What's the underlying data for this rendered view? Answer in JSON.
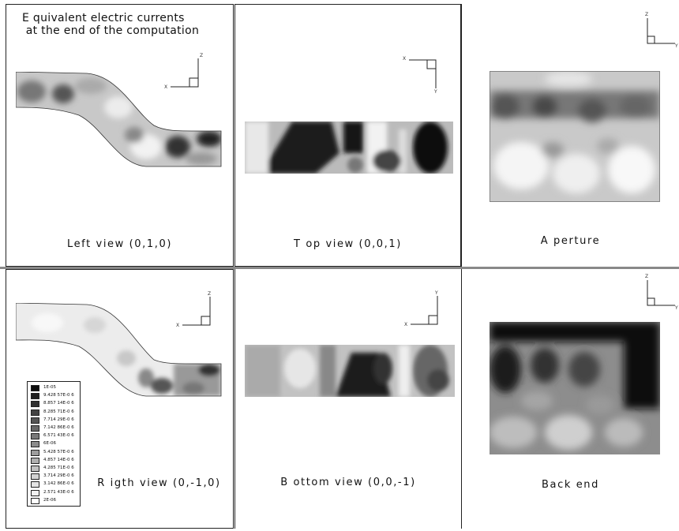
{
  "figure_title": "E quivalent electric currents\n at the end of the computation",
  "panels": {
    "left_view": {
      "caption": "Left view (0,1,0)",
      "axes": [
        "X",
        "Z"
      ]
    },
    "top_view": {
      "caption": "T op view (0,0,1)",
      "axes": [
        "X",
        "Y"
      ]
    },
    "aperture": {
      "caption": "A perture",
      "axes": [
        "Z",
        "Y"
      ]
    },
    "right_view": {
      "caption": "R igth view (0,-1,0)",
      "axes": [
        "X",
        "Z"
      ]
    },
    "bottom_view": {
      "caption": "B ottom view (0,0,-1)",
      "axes": [
        "X",
        "Y"
      ]
    },
    "back_end": {
      "caption": "Back end",
      "axes": [
        "Z",
        "Y"
      ]
    }
  },
  "legend": {
    "entries": [
      "1E-05",
      "9.428 57E-0 6",
      "8.857 14E-0 6",
      "8.285 71E-0 6",
      "7.714 29E-0 6",
      "7.142 86E-0 6",
      "6.571 43E-0 6",
      "6E-06",
      "5.428 57E-0 6",
      "4.857 14E-0 6",
      "4.285 71E-0 6",
      "3.714 29E-0 6",
      "3.142 86E-0 6",
      "2.571 43E-0 6",
      "2E-06"
    ],
    "colors": [
      "#0d0d0d",
      "#1e1e1e",
      "#303030",
      "#424242",
      "#555555",
      "#676767",
      "#797979",
      "#8b8b8b",
      "#9d9d9d",
      "#afafaf",
      "#c1c1c1",
      "#d3d3d3",
      "#e3e3e3",
      "#f1f1f1",
      "#ffffff"
    ]
  }
}
